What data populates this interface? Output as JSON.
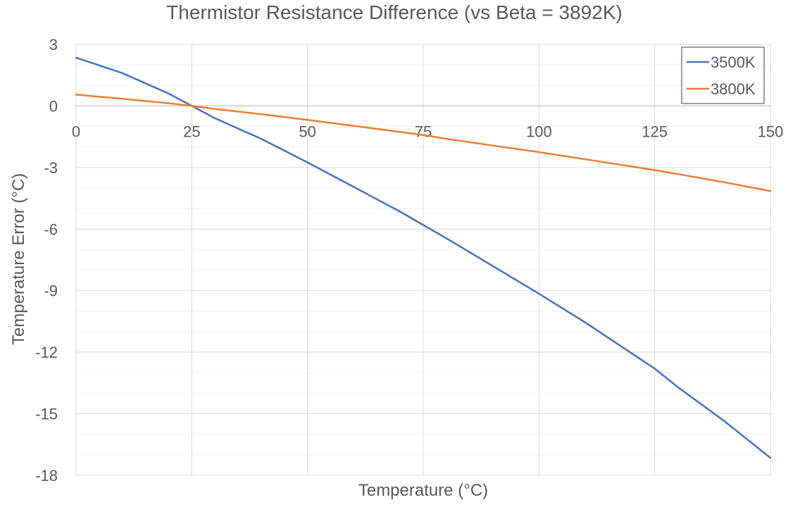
{
  "chart_data": {
    "type": "line",
    "title": "Thermistor Resistance Difference (vs Beta = 3892K)",
    "xlabel": "Temperature (°C)",
    "ylabel": "Temperature Error (°C)",
    "xlim": [
      0,
      150
    ],
    "ylim": [
      -18,
      3
    ],
    "x_ticks": [
      0,
      25,
      50,
      75,
      100,
      125,
      150
    ],
    "y_ticks": [
      3,
      0,
      -3,
      -6,
      -9,
      -12,
      -15,
      -18
    ],
    "y_minor_step": 1,
    "grid": true,
    "legend_position": "top-right",
    "x": [
      0,
      10,
      20,
      25,
      30,
      40,
      50,
      60,
      70,
      75,
      80,
      90,
      100,
      110,
      120,
      125,
      130,
      140,
      150
    ],
    "series": [
      {
        "name": "3500K",
        "color": "#4472C4",
        "values": [
          2.35,
          1.6,
          0.6,
          0.0,
          -0.6,
          -1.6,
          -2.75,
          -3.95,
          -5.15,
          -5.8,
          -6.45,
          -7.8,
          -9.15,
          -10.55,
          -12.05,
          -12.8,
          -13.7,
          -15.35,
          -17.15
        ]
      },
      {
        "name": "3800K",
        "color": "#ED7D31",
        "values": [
          0.55,
          0.35,
          0.13,
          0.0,
          -0.15,
          -0.4,
          -0.68,
          -0.97,
          -1.27,
          -1.42,
          -1.6,
          -1.93,
          -2.25,
          -2.6,
          -2.95,
          -3.13,
          -3.32,
          -3.72,
          -4.15
        ]
      }
    ]
  }
}
